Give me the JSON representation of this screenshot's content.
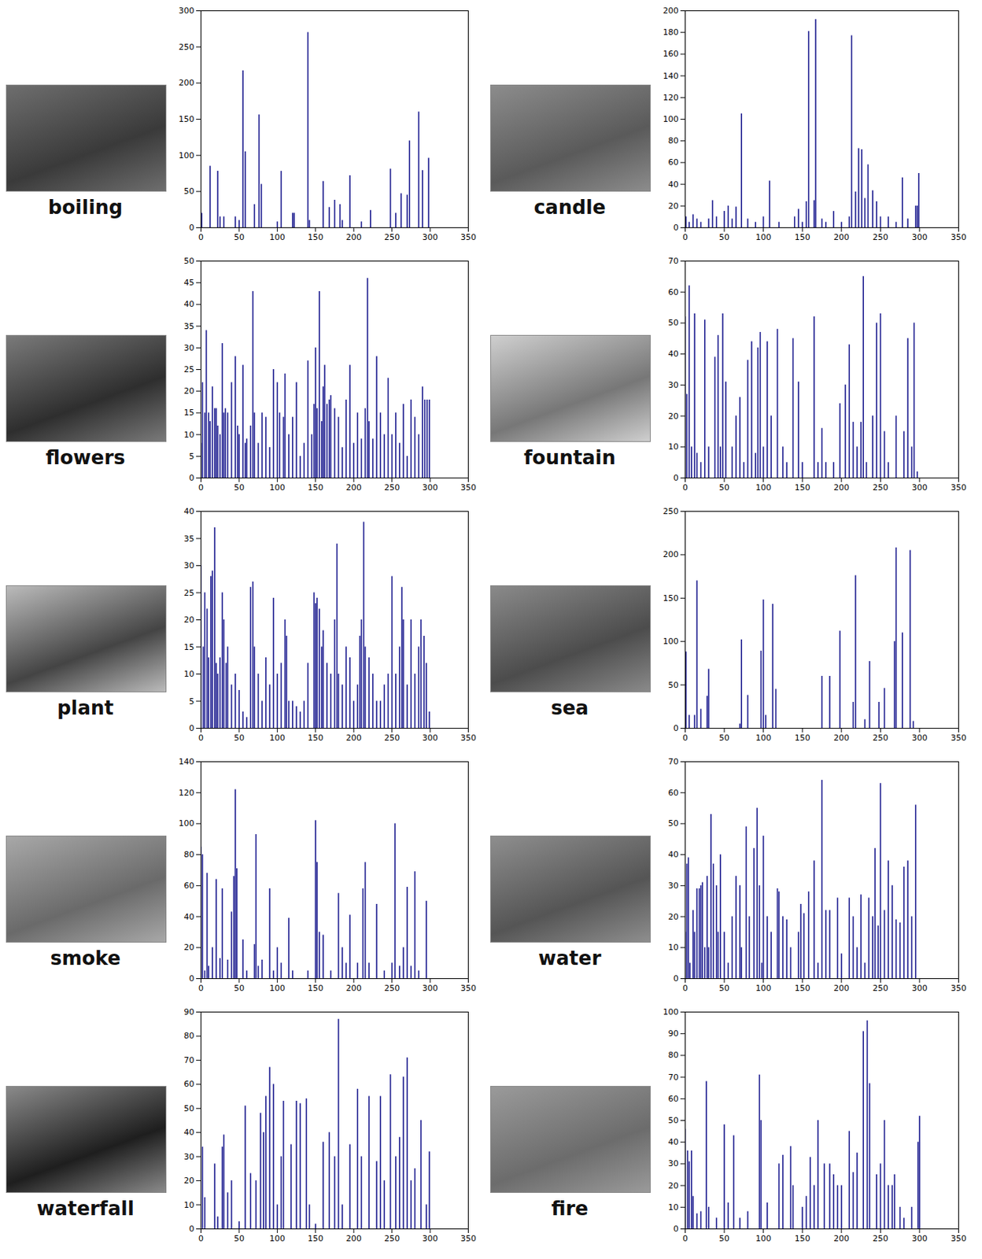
{
  "chart_data": [
    {
      "type": "bar",
      "title": "boiling",
      "color": "#1a1a8e",
      "xlim": [
        0,
        350
      ],
      "xticks": [
        0,
        50,
        100,
        150,
        200,
        250,
        300,
        350
      ],
      "ylim": [
        0,
        300
      ],
      "yticks": [
        0,
        50,
        100,
        150,
        200,
        250,
        300
      ],
      "x": [
        1,
        12,
        22,
        25,
        30,
        45,
        50,
        55,
        58,
        70,
        76,
        79,
        100,
        105,
        120,
        122,
        140,
        142,
        160,
        168,
        175,
        182,
        185,
        195,
        210,
        222,
        248,
        255,
        262,
        270,
        273,
        285,
        290,
        298
      ],
      "values": [
        20,
        85,
        78,
        15,
        15,
        15,
        10,
        217,
        105,
        32,
        156,
        60,
        8,
        78,
        20,
        20,
        270,
        10,
        64,
        28,
        38,
        32,
        10,
        72,
        8,
        24,
        81,
        20,
        47,
        45,
        120,
        160,
        79,
        96
      ]
    },
    {
      "type": "bar",
      "title": "candle",
      "color": "#1a1a8e",
      "xlim": [
        0,
        350
      ],
      "xticks": [
        0,
        50,
        100,
        150,
        200,
        250,
        300,
        350
      ],
      "ylim": [
        0,
        200
      ],
      "yticks": [
        0,
        20,
        40,
        60,
        80,
        100,
        120,
        140,
        160,
        180,
        200
      ],
      "x": [
        1,
        5,
        10,
        15,
        20,
        30,
        35,
        40,
        50,
        55,
        60,
        65,
        72,
        80,
        90,
        100,
        108,
        120,
        140,
        145,
        150,
        155,
        158,
        165,
        167,
        175,
        180,
        190,
        200,
        210,
        213,
        218,
        222,
        226,
        230,
        234,
        240,
        245,
        250,
        260,
        270,
        278,
        285,
        295,
        297,
        299
      ],
      "values": [
        10,
        5,
        12,
        8,
        5,
        8,
        25,
        10,
        15,
        20,
        8,
        19,
        105,
        8,
        5,
        10,
        43,
        5,
        10,
        17,
        5,
        24,
        181,
        25,
        192,
        8,
        5,
        15,
        5,
        10,
        177,
        33,
        73,
        72,
        27,
        58,
        34,
        24,
        10,
        10,
        5,
        46,
        8,
        20,
        20,
        50
      ]
    },
    {
      "type": "bar",
      "title": "flowers",
      "color": "#1a1a8e",
      "xlim": [
        0,
        350
      ],
      "xticks": [
        0,
        50,
        100,
        150,
        200,
        250,
        300,
        350
      ],
      "ylim": [
        0,
        50
      ],
      "yticks": [
        0,
        5,
        10,
        15,
        20,
        25,
        30,
        35,
        40,
        45,
        50
      ],
      "x": [
        0,
        2,
        5,
        7,
        10,
        12,
        15,
        18,
        20,
        22,
        25,
        28,
        30,
        32,
        35,
        40,
        45,
        48,
        50,
        55,
        58,
        60,
        65,
        68,
        70,
        75,
        80,
        85,
        90,
        95,
        100,
        103,
        108,
        110,
        115,
        120,
        125,
        130,
        135,
        140,
        145,
        148,
        150,
        152,
        155,
        158,
        160,
        162,
        165,
        168,
        170,
        175,
        180,
        185,
        190,
        195,
        200,
        205,
        210,
        215,
        218,
        220,
        225,
        230,
        235,
        240,
        245,
        250,
        255,
        260,
        265,
        270,
        275,
        280,
        285,
        290,
        293,
        296,
        299
      ],
      "values": [
        8,
        22,
        15,
        34,
        15,
        13,
        21,
        16,
        16,
        12,
        10,
        31,
        15,
        16,
        15,
        22,
        28,
        12,
        10,
        26,
        8,
        9,
        12,
        43,
        15,
        8,
        15,
        14,
        7,
        25,
        22,
        15,
        14,
        24,
        10,
        14,
        22,
        5,
        8,
        27,
        10,
        17,
        30,
        16,
        43,
        13,
        21,
        26,
        17,
        18,
        19,
        16,
        14,
        7,
        18,
        26,
        8,
        15,
        9,
        16,
        46,
        13,
        9,
        28,
        15,
        10,
        23,
        10,
        15,
        8,
        17,
        5,
        18,
        14,
        10,
        21,
        18,
        18,
        18
      ]
    },
    {
      "type": "bar",
      "title": "fountain",
      "color": "#1a1a8e",
      "xlim": [
        0,
        350
      ],
      "xticks": [
        0,
        50,
        100,
        150,
        200,
        250,
        300,
        350
      ],
      "ylim": [
        0,
        70
      ],
      "yticks": [
        0,
        10,
        20,
        30,
        40,
        50,
        60,
        70
      ],
      "x": [
        0,
        2,
        5,
        8,
        12,
        15,
        20,
        25,
        30,
        38,
        42,
        45,
        48,
        52,
        60,
        65,
        70,
        75,
        80,
        85,
        90,
        93,
        96,
        100,
        105,
        110,
        118,
        125,
        130,
        138,
        145,
        150,
        165,
        170,
        175,
        180,
        190,
        198,
        205,
        210,
        215,
        220,
        225,
        228,
        232,
        240,
        245,
        250,
        255,
        260,
        270,
        280,
        285,
        290,
        293,
        297
      ],
      "values": [
        52,
        27,
        62,
        10,
        53,
        8,
        5,
        51,
        10,
        39,
        46,
        10,
        53,
        31,
        10,
        20,
        26,
        5,
        38,
        44,
        8,
        42,
        47,
        10,
        44,
        20,
        48,
        10,
        5,
        45,
        31,
        5,
        52,
        5,
        16,
        5,
        5,
        24,
        30,
        43,
        18,
        10,
        18,
        65,
        5,
        20,
        50,
        53,
        15,
        5,
        20,
        15,
        45,
        10,
        50,
        2
      ]
    },
    {
      "type": "bar",
      "title": "plant",
      "color": "#1a1a8e",
      "xlim": [
        0,
        350
      ],
      "xticks": [
        0,
        50,
        100,
        150,
        200,
        250,
        300,
        350
      ],
      "ylim": [
        0,
        40
      ],
      "yticks": [
        0,
        5,
        10,
        15,
        20,
        25,
        30,
        35,
        40
      ],
      "x": [
        0,
        3,
        5,
        8,
        10,
        13,
        15,
        18,
        20,
        22,
        25,
        28,
        30,
        33,
        35,
        40,
        45,
        50,
        55,
        60,
        65,
        68,
        70,
        75,
        80,
        85,
        90,
        95,
        100,
        105,
        110,
        112,
        115,
        120,
        125,
        130,
        135,
        140,
        148,
        150,
        152,
        155,
        158,
        160,
        165,
        170,
        175,
        178,
        180,
        185,
        190,
        195,
        200,
        205,
        208,
        210,
        213,
        215,
        220,
        225,
        230,
        235,
        240,
        245,
        250,
        255,
        260,
        263,
        265,
        270,
        275,
        280,
        285,
        288,
        292,
        295,
        299
      ],
      "values": [
        30,
        15,
        25,
        22,
        13,
        28,
        29,
        37,
        12,
        10,
        13,
        25,
        20,
        12,
        15,
        8,
        10,
        7,
        3,
        2,
        26,
        27,
        15,
        10,
        5,
        13,
        8,
        24,
        10,
        12,
        20,
        17,
        5,
        5,
        4,
        3,
        5,
        12,
        25,
        23,
        24,
        22,
        15,
        18,
        12,
        10,
        20,
        34,
        10,
        8,
        15,
        13,
        5,
        8,
        17,
        20,
        38,
        15,
        13,
        10,
        5,
        5,
        8,
        10,
        28,
        10,
        15,
        26,
        20,
        8,
        20,
        10,
        15,
        20,
        17,
        12,
        3
      ]
    },
    {
      "type": "bar",
      "title": "sea",
      "color": "#1a1a8e",
      "xlim": [
        0,
        350
      ],
      "xticks": [
        0,
        50,
        100,
        150,
        200,
        250,
        300,
        350
      ],
      "ylim": [
        0,
        250
      ],
      "yticks": [
        0,
        50,
        100,
        150,
        200,
        250
      ],
      "x": [
        1,
        5,
        12,
        15,
        20,
        28,
        30,
        70,
        72,
        80,
        97,
        100,
        103,
        112,
        116,
        175,
        185,
        198,
        215,
        218,
        230,
        236,
        248,
        255,
        268,
        270,
        278,
        288,
        292
      ],
      "values": [
        88,
        15,
        15,
        170,
        22,
        37,
        68,
        5,
        102,
        38,
        89,
        148,
        15,
        143,
        45,
        60,
        60,
        112,
        30,
        176,
        10,
        77,
        30,
        46,
        100,
        208,
        110,
        205,
        8
      ]
    },
    {
      "type": "bar",
      "title": "smoke",
      "color": "#1a1a8e",
      "xlim": [
        0,
        350
      ],
      "xticks": [
        0,
        50,
        100,
        150,
        200,
        250,
        300,
        350
      ],
      "ylim": [
        0,
        140
      ],
      "yticks": [
        0,
        20,
        40,
        60,
        80,
        100,
        120,
        140
      ],
      "x": [
        0,
        2,
        5,
        8,
        10,
        15,
        20,
        25,
        28,
        35,
        40,
        43,
        45,
        47,
        55,
        60,
        70,
        72,
        75,
        80,
        90,
        95,
        100,
        105,
        115,
        120,
        140,
        150,
        152,
        155,
        160,
        170,
        180,
        185,
        190,
        195,
        205,
        212,
        215,
        220,
        230,
        240,
        250,
        254,
        260,
        265,
        270,
        275,
        280,
        285,
        295
      ],
      "values": [
        85,
        80,
        5,
        68,
        8,
        20,
        64,
        13,
        58,
        12,
        43,
        66,
        122,
        71,
        25,
        5,
        22,
        93,
        8,
        12,
        58,
        5,
        20,
        10,
        39,
        5,
        5,
        102,
        75,
        30,
        28,
        5,
        55,
        20,
        10,
        41,
        10,
        58,
        75,
        10,
        48,
        5,
        10,
        100,
        8,
        20,
        59,
        8,
        69,
        5,
        50
      ]
    },
    {
      "type": "bar",
      "title": "water",
      "color": "#1a1a8e",
      "xlim": [
        0,
        350
      ],
      "xticks": [
        0,
        50,
        100,
        150,
        200,
        250,
        300,
        350
      ],
      "ylim": [
        0,
        70
      ],
      "yticks": [
        0,
        10,
        20,
        30,
        40,
        50,
        60,
        70
      ],
      "x": [
        0,
        2,
        4,
        6,
        10,
        12,
        15,
        18,
        20,
        22,
        25,
        28,
        30,
        33,
        36,
        40,
        42,
        45,
        50,
        55,
        60,
        65,
        70,
        72,
        78,
        82,
        88,
        92,
        95,
        98,
        100,
        105,
        110,
        118,
        120,
        125,
        130,
        135,
        145,
        148,
        152,
        158,
        165,
        170,
        175,
        180,
        185,
        195,
        200,
        210,
        215,
        220,
        225,
        230,
        235,
        240,
        243,
        247,
        250,
        255,
        260,
        265,
        270,
        275,
        280,
        285,
        290,
        295
      ],
      "values": [
        15,
        37,
        39,
        5,
        22,
        15,
        29,
        29,
        30,
        31,
        10,
        33,
        10,
        53,
        37,
        30,
        15,
        40,
        15,
        5,
        20,
        33,
        30,
        10,
        49,
        20,
        42,
        55,
        30,
        5,
        46,
        20,
        15,
        29,
        28,
        20,
        19,
        10,
        15,
        24,
        21,
        28,
        38,
        5,
        64,
        22,
        22,
        26,
        8,
        26,
        20,
        10,
        27,
        5,
        26,
        20,
        42,
        17,
        63,
        22,
        38,
        30,
        19,
        18,
        36,
        38,
        20,
        56
      ]
    },
    {
      "type": "bar",
      "title": "waterfall",
      "color": "#1a1a8e",
      "xlim": [
        0,
        350
      ],
      "xticks": [
        0,
        50,
        100,
        150,
        200,
        250,
        300,
        350
      ],
      "ylim": [
        0,
        90
      ],
      "yticks": [
        0,
        10,
        20,
        30,
        40,
        50,
        60,
        70,
        80,
        90
      ],
      "x": [
        2,
        5,
        18,
        22,
        28,
        30,
        35,
        40,
        50,
        58,
        65,
        72,
        78,
        82,
        85,
        90,
        95,
        100,
        105,
        108,
        118,
        125,
        130,
        138,
        142,
        150,
        160,
        168,
        175,
        180,
        185,
        195,
        205,
        210,
        220,
        230,
        235,
        240,
        248,
        255,
        260,
        265,
        270,
        275,
        280,
        288,
        295,
        299
      ],
      "values": [
        34,
        13,
        27,
        5,
        34,
        39,
        15,
        20,
        3,
        51,
        23,
        20,
        48,
        40,
        55,
        67,
        60,
        10,
        30,
        53,
        35,
        53,
        52,
        54,
        10,
        2,
        36,
        40,
        30,
        87,
        10,
        35,
        58,
        30,
        55,
        28,
        55,
        20,
        64,
        30,
        38,
        63,
        71,
        20,
        25,
        45,
        10,
        32
      ]
    },
    {
      "type": "bar",
      "title": "fire",
      "color": "#1a1a8e",
      "xlim": [
        0,
        350
      ],
      "xticks": [
        0,
        50,
        100,
        150,
        200,
        250,
        300,
        350
      ],
      "ylim": [
        0,
        100
      ],
      "yticks": [
        0,
        10,
        20,
        30,
        40,
        50,
        60,
        70,
        80,
        90,
        100
      ],
      "x": [
        0,
        3,
        5,
        8,
        10,
        15,
        20,
        27,
        30,
        40,
        50,
        55,
        62,
        70,
        80,
        95,
        97,
        105,
        120,
        125,
        135,
        138,
        150,
        155,
        160,
        165,
        170,
        178,
        185,
        190,
        195,
        200,
        210,
        215,
        220,
        228,
        233,
        236,
        245,
        250,
        255,
        260,
        265,
        268,
        275,
        280,
        290,
        298,
        300
      ],
      "values": [
        46,
        36,
        31,
        36,
        15,
        7,
        8,
        68,
        10,
        5,
        48,
        12,
        43,
        5,
        8,
        71,
        50,
        12,
        30,
        34,
        38,
        20,
        10,
        15,
        33,
        20,
        50,
        30,
        30,
        25,
        20,
        20,
        45,
        26,
        35,
        91,
        96,
        67,
        25,
        30,
        50,
        20,
        20,
        25,
        10,
        5,
        10,
        40,
        52
      ]
    }
  ]
}
